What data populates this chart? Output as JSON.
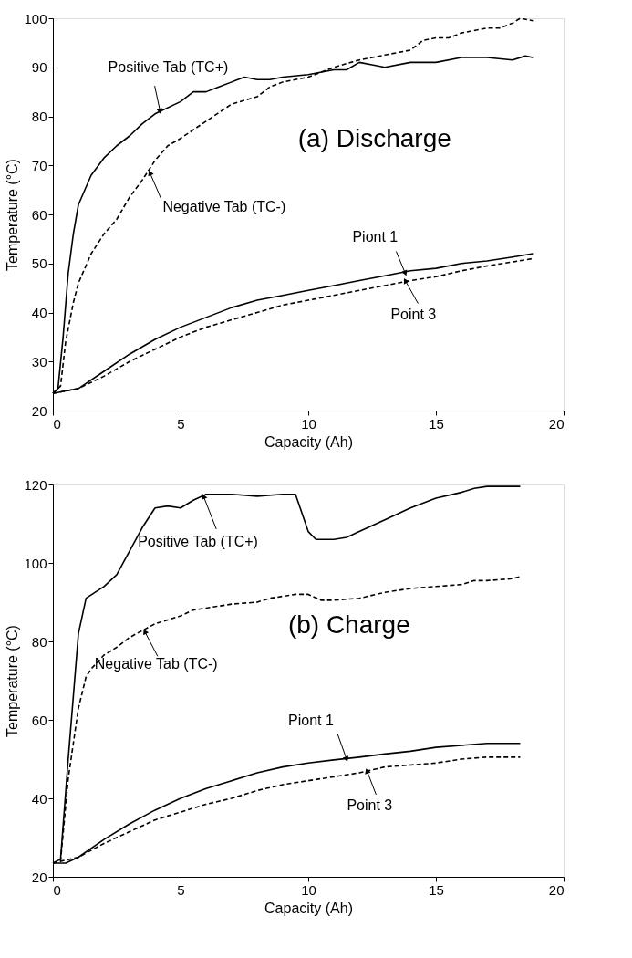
{
  "chart_data": [
    {
      "type": "line",
      "xlabel": "Capacity (Ah)",
      "ylabel": "Temperature (°C)",
      "xlim": [
        0,
        20
      ],
      "xticks": [
        0,
        5,
        10,
        15,
        20
      ],
      "ylim": [
        20,
        100
      ],
      "yticks": [
        20,
        30,
        40,
        50,
        60,
        70,
        80,
        90,
        100
      ],
      "grid": false,
      "annotations": [
        "(a) Discharge",
        {
          "text": "Positive Tab (TC+)",
          "x": 4.2,
          "y": 81
        },
        {
          "text": "Negative Tab (TC-)",
          "x": 3.8,
          "y": 68.5
        },
        {
          "text": "Piont 1",
          "x": 13.8,
          "y": 48
        },
        {
          "text": "Point 3",
          "x": 13.8,
          "y": 46.5
        }
      ],
      "series": [
        {
          "color": "#000000",
          "line_style": "solid",
          "x": [
            0,
            0.2,
            0.4,
            0.6,
            0.8,
            1,
            1.5,
            2,
            2.5,
            3,
            3.5,
            4,
            5,
            5.5,
            6,
            6.5,
            7,
            7.5,
            8,
            8.5,
            9,
            10,
            11,
            11.5,
            12,
            12.5,
            13,
            14,
            15,
            16,
            17,
            18,
            18.5,
            18.8
          ],
          "values": [
            23.5,
            24.5,
            35,
            48,
            56,
            62,
            68,
            71.5,
            74,
            76,
            78.5,
            80.5,
            83,
            85,
            85,
            86,
            87,
            88,
            87.5,
            87.5,
            88,
            88.5,
            89.5,
            89.5,
            91,
            90.5,
            90,
            91,
            91,
            92,
            92,
            91.5,
            92.3,
            92
          ]
        },
        {
          "color": "#000000",
          "line_style": "dashed",
          "x": [
            0,
            0.3,
            0.5,
            0.8,
            1,
            1.5,
            2,
            2.5,
            3,
            3.5,
            4,
            4.5,
            5,
            6,
            7,
            8,
            8.5,
            9,
            10,
            11,
            12,
            13,
            14,
            14.5,
            15,
            15.5,
            16,
            17,
            17.5,
            18,
            18.3,
            18.8
          ],
          "values": [
            23.5,
            25,
            34,
            42,
            46,
            52,
            56,
            59,
            63.5,
            67,
            71,
            74,
            75.5,
            79,
            82.5,
            84,
            86,
            87,
            88,
            90,
            91.5,
            92.5,
            93.5,
            95.5,
            96,
            96,
            97,
            98,
            98,
            99,
            100,
            99.5
          ]
        },
        {
          "color": "#000000",
          "line_style": "solid",
          "x": [
            0,
            1,
            2,
            3,
            4,
            5,
            6,
            7,
            8,
            9,
            10,
            11,
            12,
            13,
            14,
            15,
            16,
            17,
            18,
            18.8
          ],
          "values": [
            23.5,
            24.5,
            28,
            31.5,
            34.5,
            37,
            39,
            41,
            42.5,
            43.5,
            44.5,
            45.5,
            46.5,
            47.5,
            48.5,
            49,
            50,
            50.5,
            51.3,
            52
          ]
        },
        {
          "color": "#000000",
          "line_style": "dashed",
          "x": [
            0,
            1,
            2,
            3,
            4,
            5,
            6,
            7,
            8,
            9,
            10,
            11,
            12,
            13,
            14,
            15,
            16,
            17,
            18,
            18.8
          ],
          "values": [
            23.5,
            24.5,
            27,
            30,
            32.5,
            35,
            37,
            38.5,
            40,
            41.5,
            42.5,
            43.5,
            44.5,
            45.5,
            46.5,
            47.3,
            48.5,
            49.5,
            50.3,
            51
          ]
        }
      ]
    },
    {
      "type": "line",
      "xlabel": "Capacity (Ah)",
      "ylabel": "Temperature (°C)",
      "xlim": [
        0,
        20
      ],
      "xticks": [
        0,
        5,
        10,
        15,
        20
      ],
      "ylim": [
        20,
        120
      ],
      "yticks": [
        20,
        40,
        60,
        80,
        100,
        120
      ],
      "grid": false,
      "annotations": [
        "(b) Charge",
        {
          "text": "Positive Tab (TC+)",
          "x": 5.9,
          "y": 117
        },
        {
          "text": "Negative Tab (TC-)",
          "x": 3.6,
          "y": 82.5
        },
        {
          "text": "Piont 1",
          "x": 11.5,
          "y": 50
        },
        {
          "text": "Point 3",
          "x": 12.3,
          "y": 47
        }
      ],
      "series": [
        {
          "color": "#000000",
          "line_style": "solid",
          "x": [
            0,
            0.3,
            0.6,
            1,
            1.3,
            2,
            2.5,
            3,
            3.5,
            4,
            4.5,
            5,
            5.5,
            6,
            7,
            8,
            9,
            9.5,
            10,
            10.3,
            11,
            11.5,
            12,
            13,
            14,
            15,
            16,
            16.5,
            17,
            18,
            18.3
          ],
          "values": [
            23.5,
            24.5,
            50,
            82,
            91,
            94,
            97,
            103,
            109,
            114,
            114.5,
            114,
            116,
            117.5,
            117.5,
            117,
            117.5,
            117.5,
            108,
            106,
            106,
            106.5,
            108,
            111,
            114,
            116.5,
            118,
            119,
            119.5,
            119.5,
            119.5
          ]
        },
        {
          "color": "#000000",
          "line_style": "dashed",
          "x": [
            0,
            0.3,
            0.6,
            1,
            1.3,
            1.5,
            2,
            2.5,
            3,
            4,
            5,
            5.5,
            6,
            7,
            8,
            8.5,
            9,
            9.5,
            10,
            10.5,
            11,
            12,
            13,
            14,
            15,
            16,
            16.5,
            17,
            18,
            18.3
          ],
          "values": [
            23.5,
            24,
            45,
            63,
            71,
            73,
            76.5,
            78.5,
            81,
            84.5,
            86.5,
            88,
            88.5,
            89.5,
            90,
            91,
            91.5,
            92,
            92,
            90.5,
            90.5,
            91,
            92.5,
            93.5,
            94,
            94.5,
            95.5,
            95.5,
            96,
            96.5
          ]
        },
        {
          "color": "#000000",
          "line_style": "solid",
          "x": [
            0,
            0.5,
            1,
            2,
            3,
            4,
            5,
            6,
            7,
            8,
            9,
            10,
            11,
            12,
            13,
            14,
            15,
            16,
            17,
            18.3
          ],
          "values": [
            23.5,
            23.5,
            25,
            29.5,
            33.5,
            37,
            40,
            42.5,
            44.5,
            46.5,
            48,
            49,
            49.8,
            50.5,
            51.3,
            52,
            53,
            53.5,
            54,
            54
          ]
        },
        {
          "color": "#000000",
          "line_style": "dashed",
          "x": [
            0,
            1,
            2,
            3,
            4,
            5,
            6,
            7,
            8,
            9,
            10,
            11,
            12,
            13,
            14,
            15,
            16,
            17,
            18.3
          ],
          "values": [
            23.5,
            25,
            28.5,
            31.5,
            34.5,
            36.5,
            38.5,
            40,
            42,
            43.5,
            44.5,
            45.5,
            46.5,
            48,
            48.5,
            49,
            50,
            50.5,
            50.5
          ]
        }
      ]
    }
  ]
}
